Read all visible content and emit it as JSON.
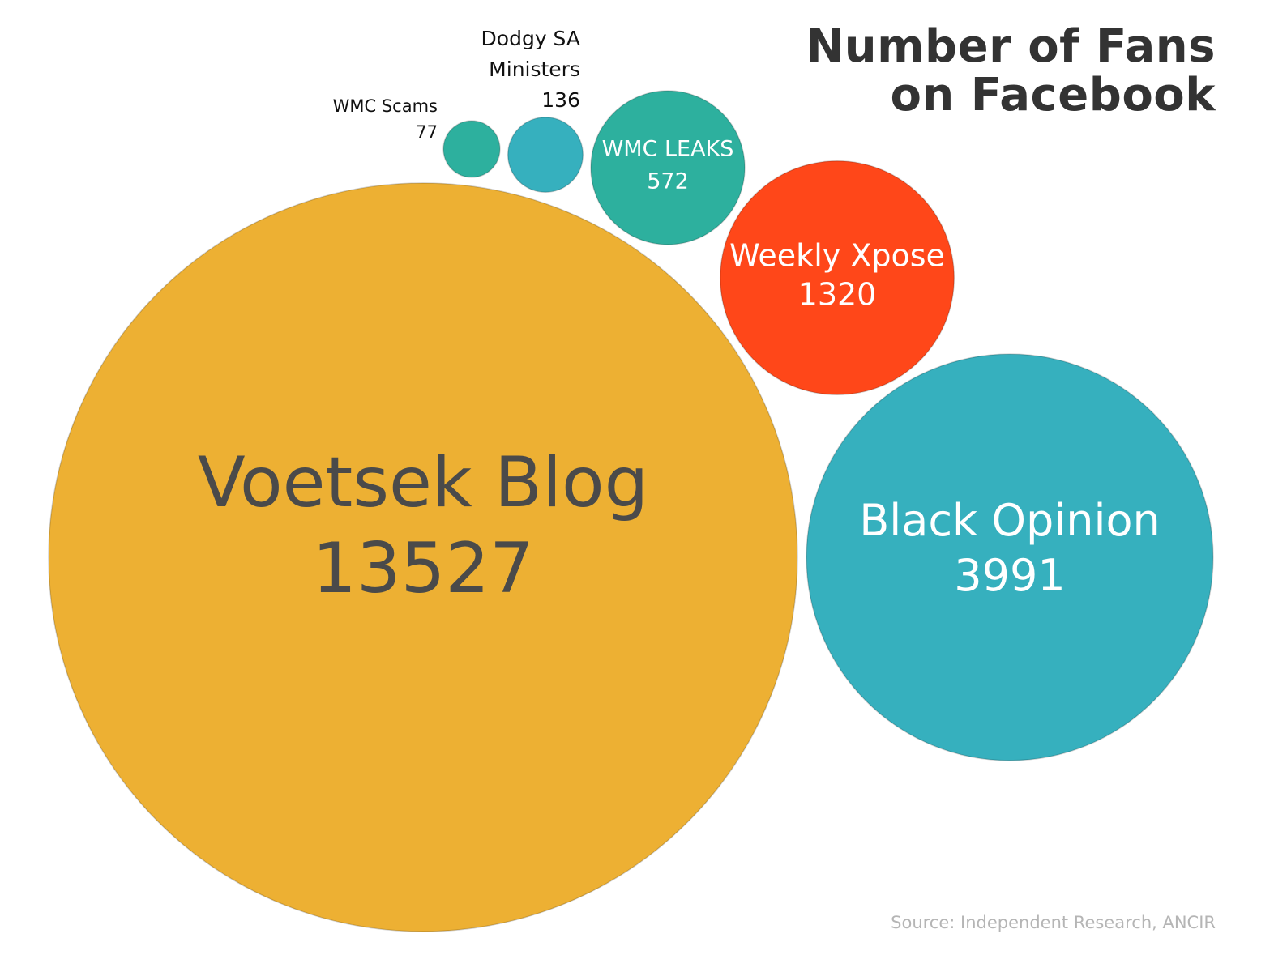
{
  "title_lines": [
    "Number of Fans",
    "on Facebook"
  ],
  "source": "Source: Independent Research, ANCIR",
  "chart_data": {
    "type": "bubble",
    "title": "Number of Fans on Facebook",
    "points": [
      {
        "label": "Voetsek Blog",
        "value": 13527,
        "value_text": "13527",
        "color": "#EDB033"
      },
      {
        "label": "Black Opinion",
        "value": 3991,
        "value_text": "3991",
        "color": "#36B0BE"
      },
      {
        "label": "Weekly Xpose",
        "value": 1320,
        "value_text": "1320",
        "color": "#FF4719"
      },
      {
        "label": "WMC LEAKS",
        "value": 572,
        "value_text": "572",
        "color": "#2DB09E"
      },
      {
        "label": "Dodgy SA Ministers",
        "label_lines": [
          "Dodgy SA",
          "Ministers"
        ],
        "value": 136,
        "value_text": "136",
        "color": "#36B0BE"
      },
      {
        "label": "WMC Scams",
        "value": 77,
        "value_text": "77",
        "color": "#2DB09E"
      }
    ]
  }
}
